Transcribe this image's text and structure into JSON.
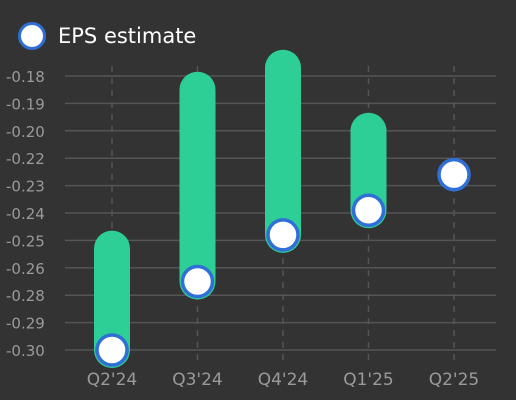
{
  "chart_data": {
    "type": "bar",
    "categories": [
      "Q2'24",
      "Q3'24",
      "Q4'24",
      "Q1'25",
      "Q2'25"
    ],
    "series": [
      {
        "name": "EPS estimate",
        "values": [
          -0.3,
          -0.27,
          -0.248,
          -0.239,
          -0.226
        ]
      },
      {
        "values": [
          -0.253,
          -0.185,
          -0.177,
          -0.2,
          null
        ]
      }
    ],
    "y_ticks": [
      "-0.18",
      "-0.19",
      "-0.20",
      "-0.22",
      "-0.23",
      "-0.24",
      "-0.25",
      "-0.26",
      "-0.28",
      "-0.29",
      "-0.30"
    ],
    "ylim": [
      -0.3,
      -0.18
    ],
    "grid": "horizontal solid, vertical dashed",
    "legend": "top-left",
    "colors": {
      "background": "#333333",
      "bar": "#2ecf97",
      "marker_fill": "#ffffff",
      "marker_stroke": "#2f6fd6",
      "grid": "#555555",
      "tick_text": "#9a9a9a"
    }
  }
}
